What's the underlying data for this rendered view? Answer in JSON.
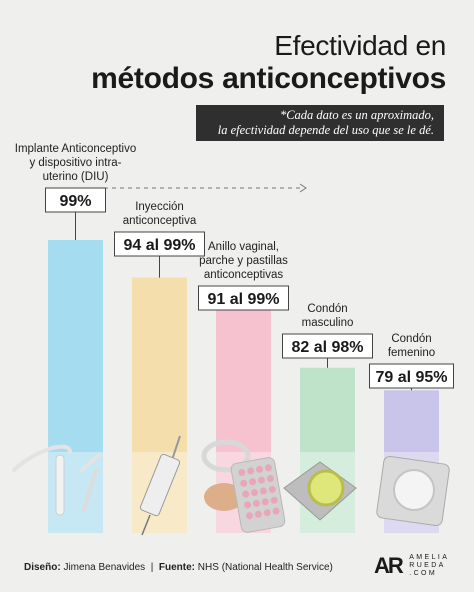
{
  "title_line1": "Efectividad en",
  "title_line2": "métodos anticonceptivos",
  "note_line1": "*Cada dato es un aproximado,",
  "note_line2": "la efectividad depende del uso que se le dé.",
  "footer": {
    "design_label": "Diseño:",
    "design_value": "Jimena Benavides",
    "separator": "|",
    "source_label": "Fuente:",
    "source_value": "NHS (National Health Service)"
  },
  "logo": {
    "mark": "AR",
    "name_lines": [
      "AMELIA",
      "RUEDA",
      ".COM"
    ]
  },
  "chart_data": {
    "type": "bar",
    "title": "Efectividad en métodos anticonceptivos",
    "ylim": [
      0,
      100
    ],
    "categories": [
      "Implante Anticonceptivo y dispositivo intra-uterino (DIU)",
      "Inyección anticonceptiva",
      "Anillo vaginal, parche y pastillas anticonceptivas",
      "Condón masculino",
      "Condón femenino"
    ],
    "category_lines": [
      [
        "Implante Anticonceptivo",
        "y dispositivo intra-",
        "uterino (DIU)"
      ],
      [
        "Inyección",
        "anticonceptiva"
      ],
      [
        "Anillo vaginal,",
        "parche y pastillas",
        "anticonceptivas"
      ],
      [
        "Condón",
        "masculino"
      ],
      [
        "Condón",
        "femenino"
      ]
    ],
    "value_labels": [
      "99%",
      "94 al 99%",
      "91 al 99%",
      "82 al 98%",
      "79 al 95%"
    ],
    "values_min": [
      99,
      94,
      91,
      82,
      79
    ],
    "values_max": [
      99,
      99,
      99,
      98,
      95
    ],
    "colors": [
      "#a6dcef",
      "#f4deab",
      "#f6c2d0",
      "#bfe3c9",
      "#c9c5ea"
    ],
    "illustrations": [
      "iud-icon",
      "syringe-icon",
      "ring-patch-pills-icon",
      "male-condom-icon",
      "female-condom-icon"
    ]
  }
}
